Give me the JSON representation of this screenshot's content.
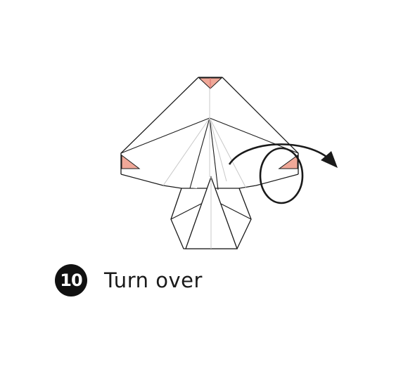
{
  "step": {
    "number": "10",
    "instruction": "Turn over"
  },
  "icons": {
    "turn_over_arrow": "turn-over-icon"
  },
  "colors": {
    "line": "#1a1a1a",
    "crease": "#c8c8c8",
    "paper_color_side": "#f0a898",
    "paper_color_side_dark": "#e07878",
    "badge": "#111111",
    "background": "#ffffff"
  }
}
